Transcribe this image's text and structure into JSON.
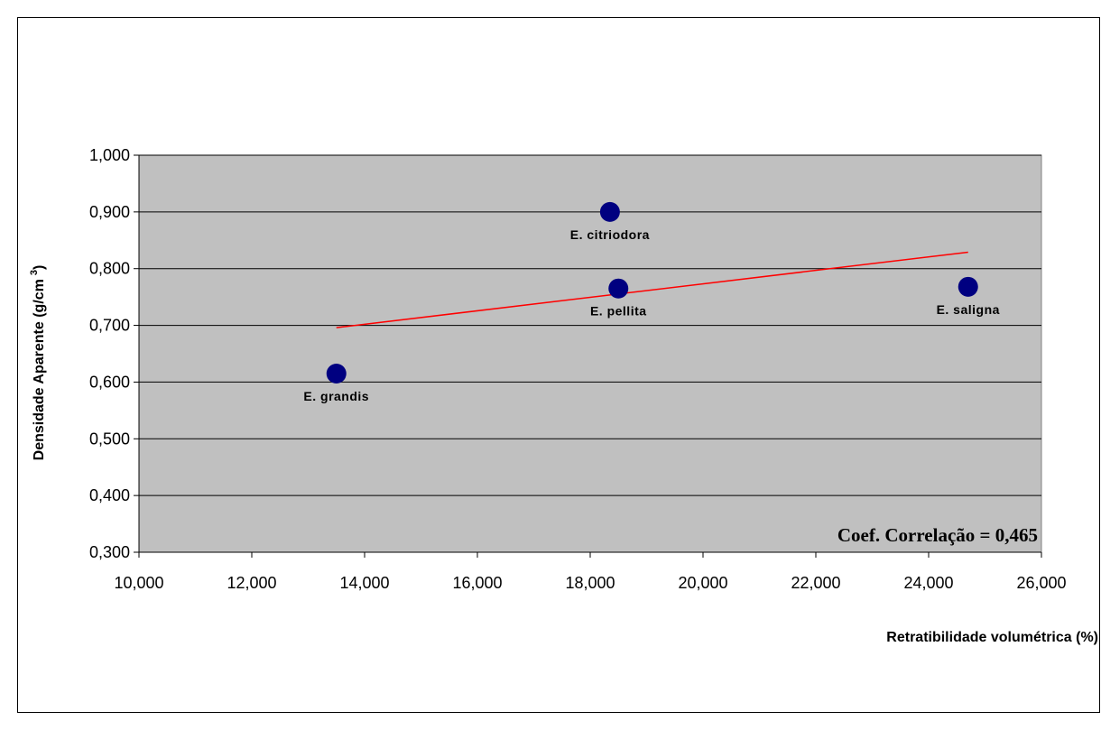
{
  "chart_data": {
    "type": "scatter",
    "xlabel": "Retratibilidade volumétrica (%)",
    "ylabel": "Densidade Aparente (g/cm",
    "ylabel_sup": "3",
    "ylabel_close": ")",
    "xlim": [
      10,
      26
    ],
    "ylim": [
      0.3,
      1.0
    ],
    "x_ticks": [
      "10,000",
      "12,000",
      "14,000",
      "16,000",
      "18,000",
      "20,000",
      "22,000",
      "24,000",
      "26,000"
    ],
    "y_ticks": [
      "1,000",
      "0,900",
      "0,800",
      "0,700",
      "0,600",
      "0,500",
      "0,400",
      "0,300"
    ],
    "x_tick_values": [
      10,
      12,
      14,
      16,
      18,
      20,
      22,
      24,
      26
    ],
    "y_tick_values": [
      1.0,
      0.9,
      0.8,
      0.7,
      0.6,
      0.5,
      0.4,
      0.3
    ],
    "grid": "horizontal",
    "points": [
      {
        "label": "E. grandis",
        "x": 13.5,
        "y": 0.615
      },
      {
        "label": "E. citriodora",
        "x": 18.35,
        "y": 0.9
      },
      {
        "label": "E. pellita",
        "x": 18.5,
        "y": 0.765
      },
      {
        "label": "E. saligna",
        "x": 24.7,
        "y": 0.768
      }
    ],
    "trendline": {
      "x": [
        13.5,
        24.7
      ],
      "y": [
        0.696,
        0.829
      ]
    },
    "annotation": "Coef. Correlação = 0,465",
    "colors": {
      "plot_bg": "#c0c0c0",
      "marker": "#000080",
      "trendline": "#ff0000"
    }
  }
}
